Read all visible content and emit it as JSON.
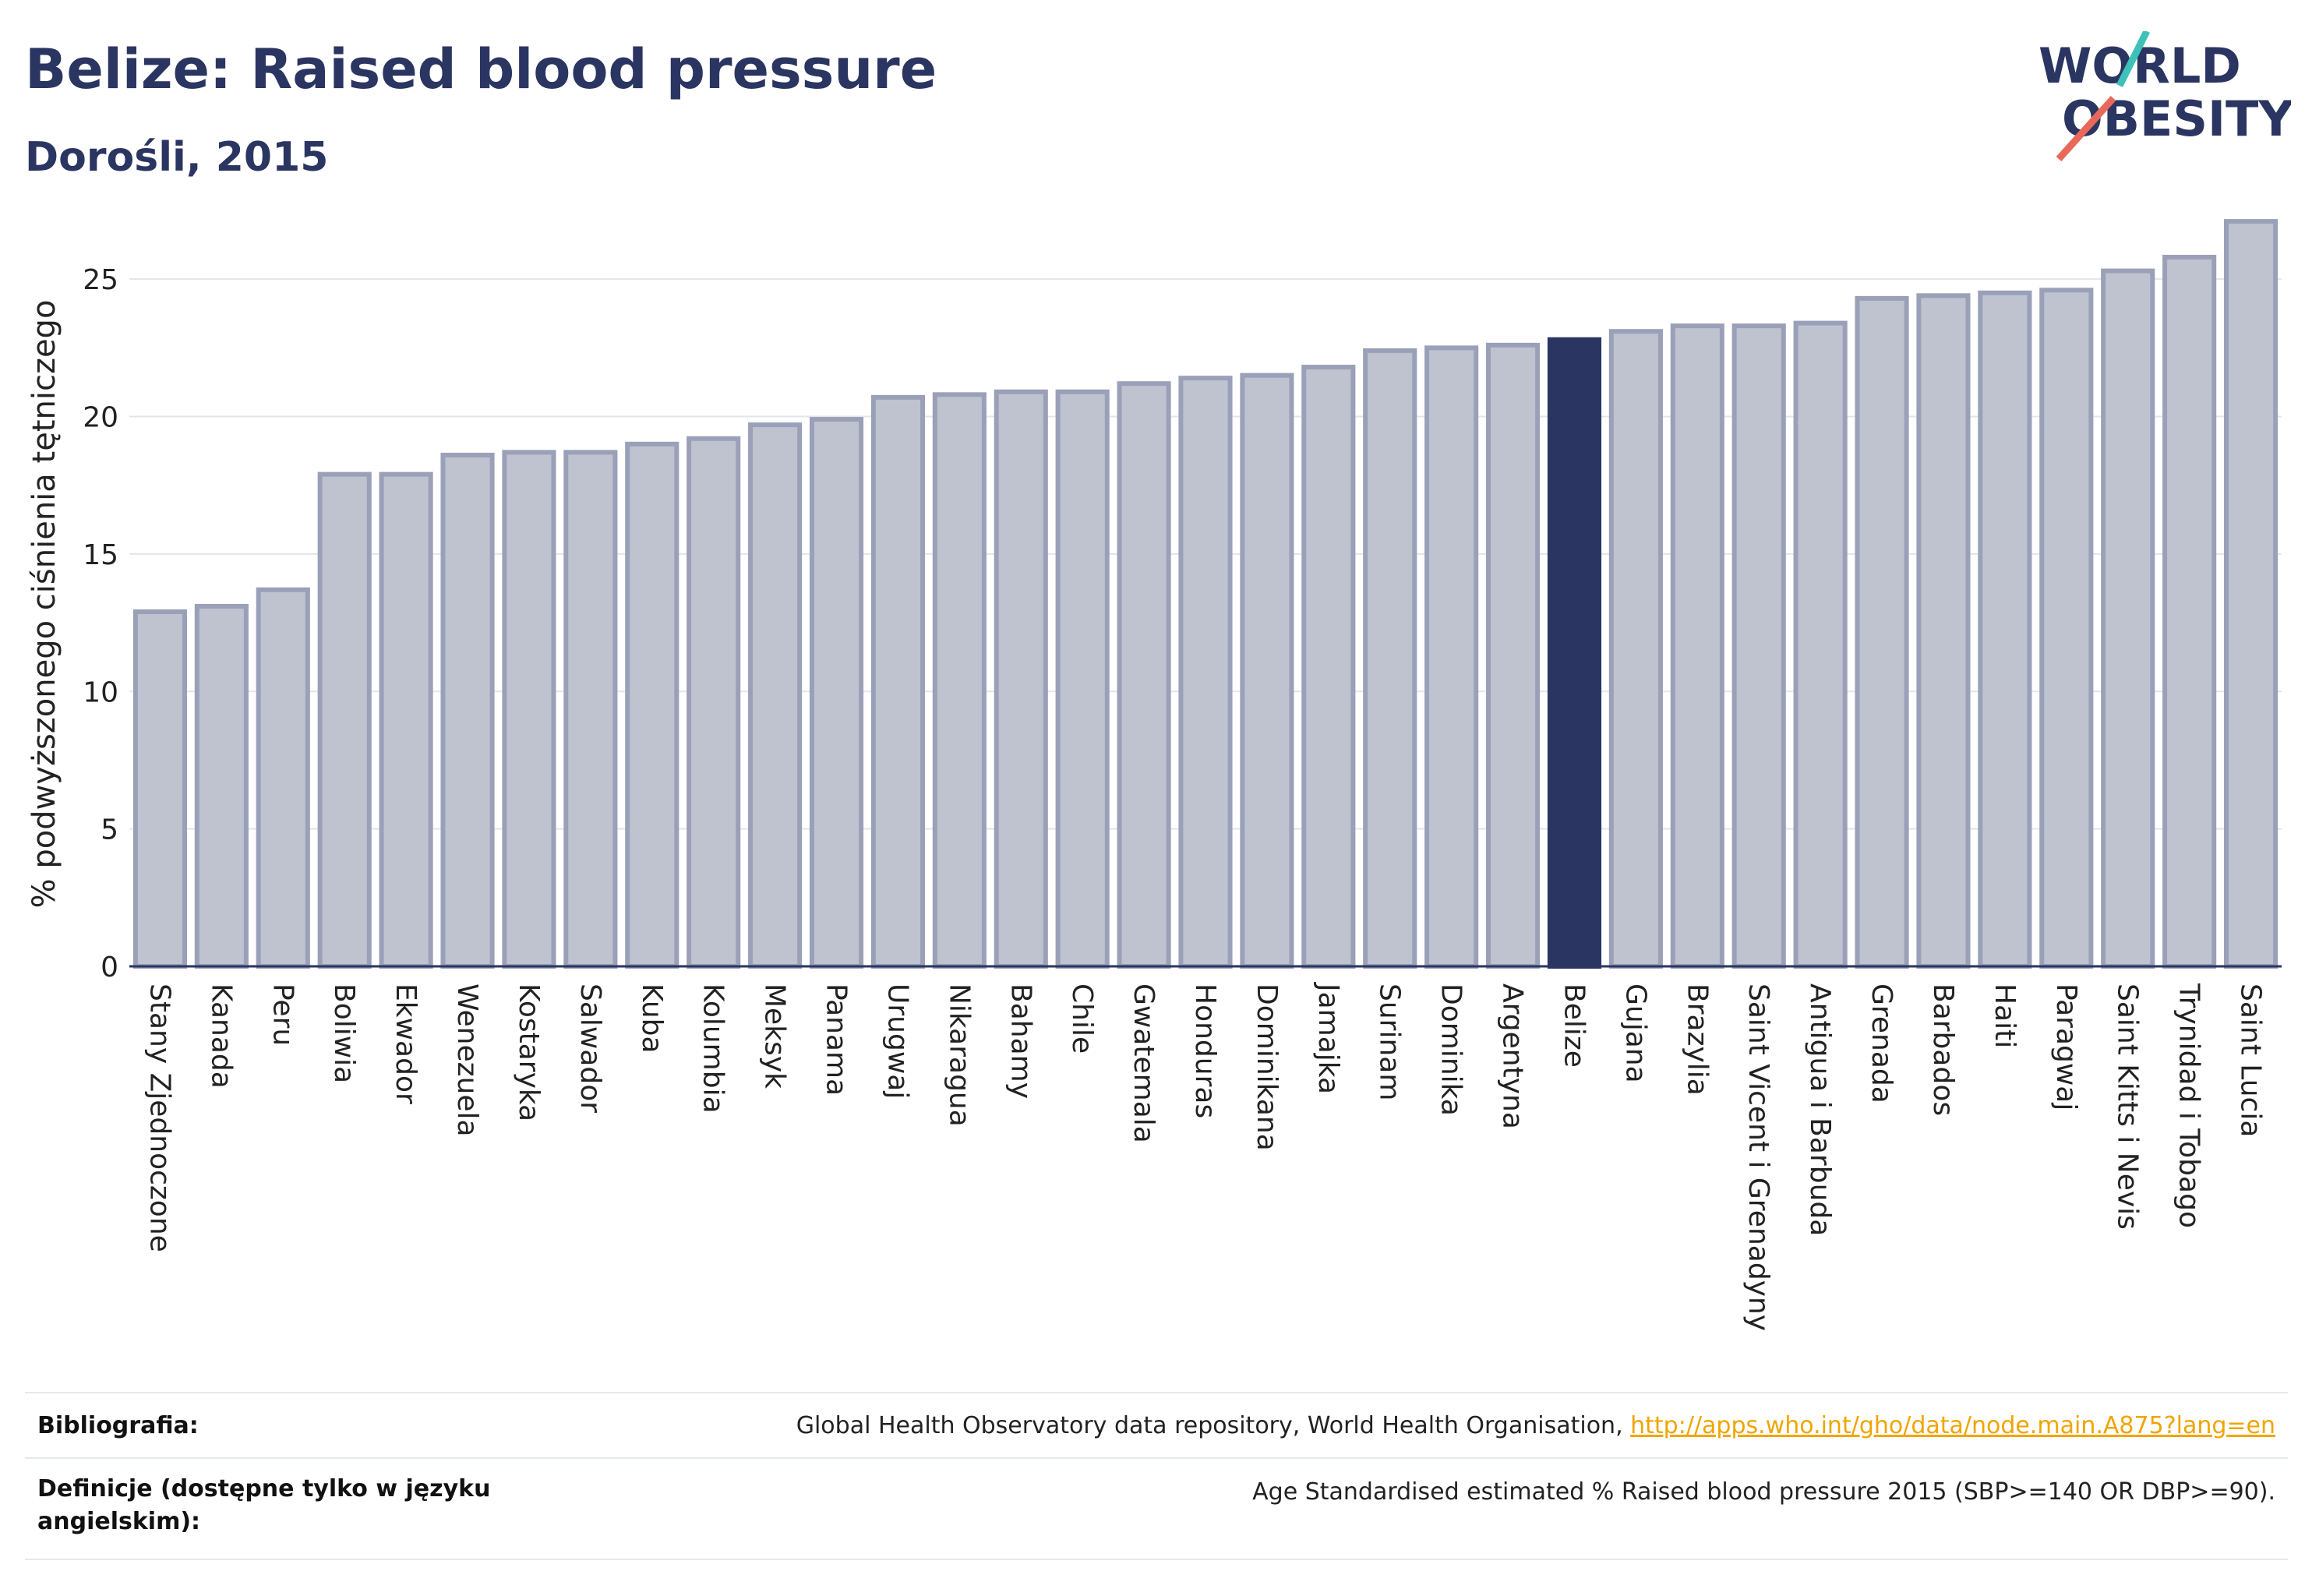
{
  "header": {
    "title": "Belize: Raised blood pressure",
    "subtitle": "Dorośli, 2015",
    "logo_line1": "WORLD",
    "logo_line2": "OBESITY"
  },
  "colors": {
    "bar": "#bfc3d0",
    "bar_border": "#9aa0b8",
    "highlight": "#2b3561",
    "axis": "#2b3561",
    "grid": "#e3e5ec",
    "logo_teal": "#3ec1b8",
    "logo_red": "#e8695a",
    "link": "#f0a500"
  },
  "chart_data": {
    "type": "bar",
    "ylabel": "% podwyższonego ciśnienia tętniczego",
    "ylim": [
      0,
      27.5
    ],
    "yticks": [
      0,
      5,
      10,
      15,
      20,
      25
    ],
    "grid": true,
    "highlight_category": "Belize",
    "categories": [
      "Stany Zjednoczone",
      "Kanada",
      "Peru",
      "Boliwia",
      "Ekwador",
      "Wenezuela",
      "Kostaryka",
      "Salwador",
      "Kuba",
      "Kolumbia",
      "Meksyk",
      "Panama",
      "Urugwaj",
      "Nikaragua",
      "Bahamy",
      "Chile",
      "Gwatemala",
      "Honduras",
      "Dominikana",
      "Jamajka",
      "Surinam",
      "Dominika",
      "Argentyna",
      "Belize",
      "Gujana",
      "Brazylia",
      "Saint Vicent i Grenadyny",
      "Antigua i Barbuda",
      "Grenada",
      "Barbados",
      "Haiti",
      "Paragwaj",
      "Saint Kitts i Nevis",
      "Trynidad i Tobago",
      "Saint Lucia"
    ],
    "values": [
      12.9,
      13.1,
      13.7,
      17.9,
      17.9,
      18.6,
      18.7,
      18.7,
      19.0,
      19.2,
      19.7,
      19.9,
      20.7,
      20.8,
      20.9,
      20.9,
      21.2,
      21.4,
      21.5,
      21.8,
      22.4,
      22.5,
      22.6,
      22.8,
      23.1,
      23.3,
      23.3,
      23.4,
      24.3,
      24.4,
      24.5,
      24.6,
      25.3,
      25.8,
      27.1
    ]
  },
  "footer": {
    "bibliography_label": "Bibliografia:",
    "bibliography_text": "Global Health Observatory data repository, World Health Organisation, ",
    "bibliography_link": "http://apps.who.int/gho/data/node.main.A875?lang=en",
    "definitions_label": "Definicje (dostępne tylko w języku angielskim):",
    "definitions_text": "Age Standardised estimated % Raised blood pressure 2015 (SBP>=140 OR DBP>=90)."
  }
}
